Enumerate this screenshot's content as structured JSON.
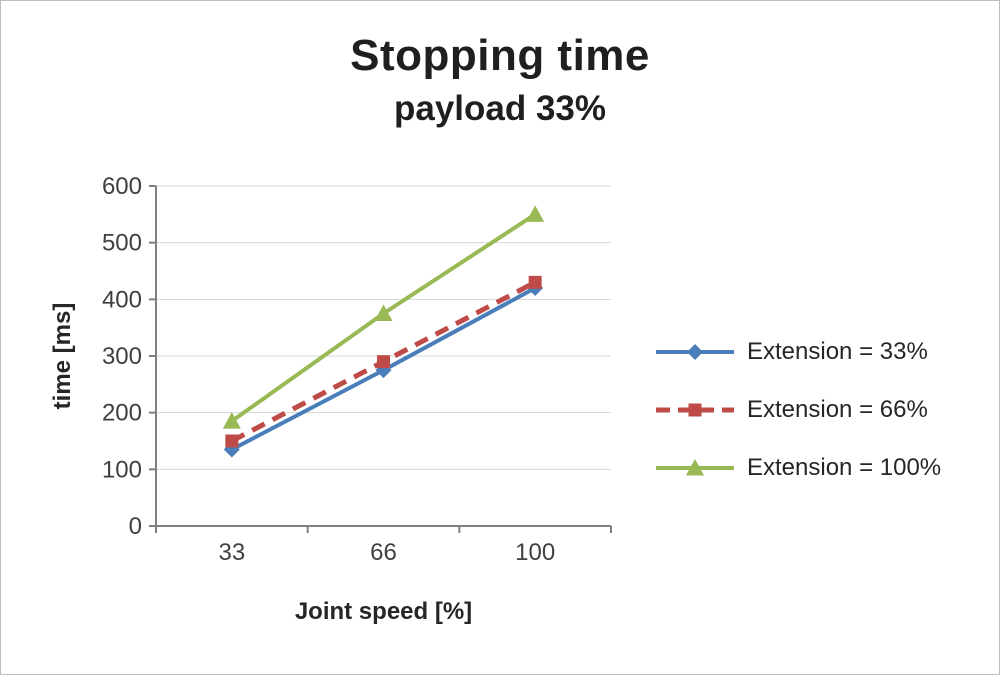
{
  "chart_data": {
    "type": "line",
    "title": "Stopping time",
    "subtitle": "payload 33%",
    "xlabel": "Joint speed [%]",
    "ylabel": "time [ms]",
    "categories": [
      "33",
      "66",
      "100"
    ],
    "ylim": [
      0,
      600
    ],
    "ytick_step": 100,
    "grid": true,
    "legend_position": "right",
    "series": [
      {
        "name": "Extension = 33%",
        "values": [
          135,
          275,
          420
        ],
        "color": "#4a7ebb",
        "marker": "diamond",
        "line_style": "solid"
      },
      {
        "name": "Extension = 66%",
        "values": [
          150,
          290,
          430
        ],
        "color": "#be4b48",
        "marker": "square",
        "line_style": "dashed"
      },
      {
        "name": "Extension = 100%",
        "values": [
          185,
          375,
          550
        ],
        "color": "#98b954",
        "marker": "triangle",
        "line_style": "solid"
      }
    ],
    "colors": {
      "gridline": "#d6d6d6",
      "axis": "#7f7f7f",
      "tick_label": "#404040",
      "title_text": "#1f1f1f"
    }
  }
}
